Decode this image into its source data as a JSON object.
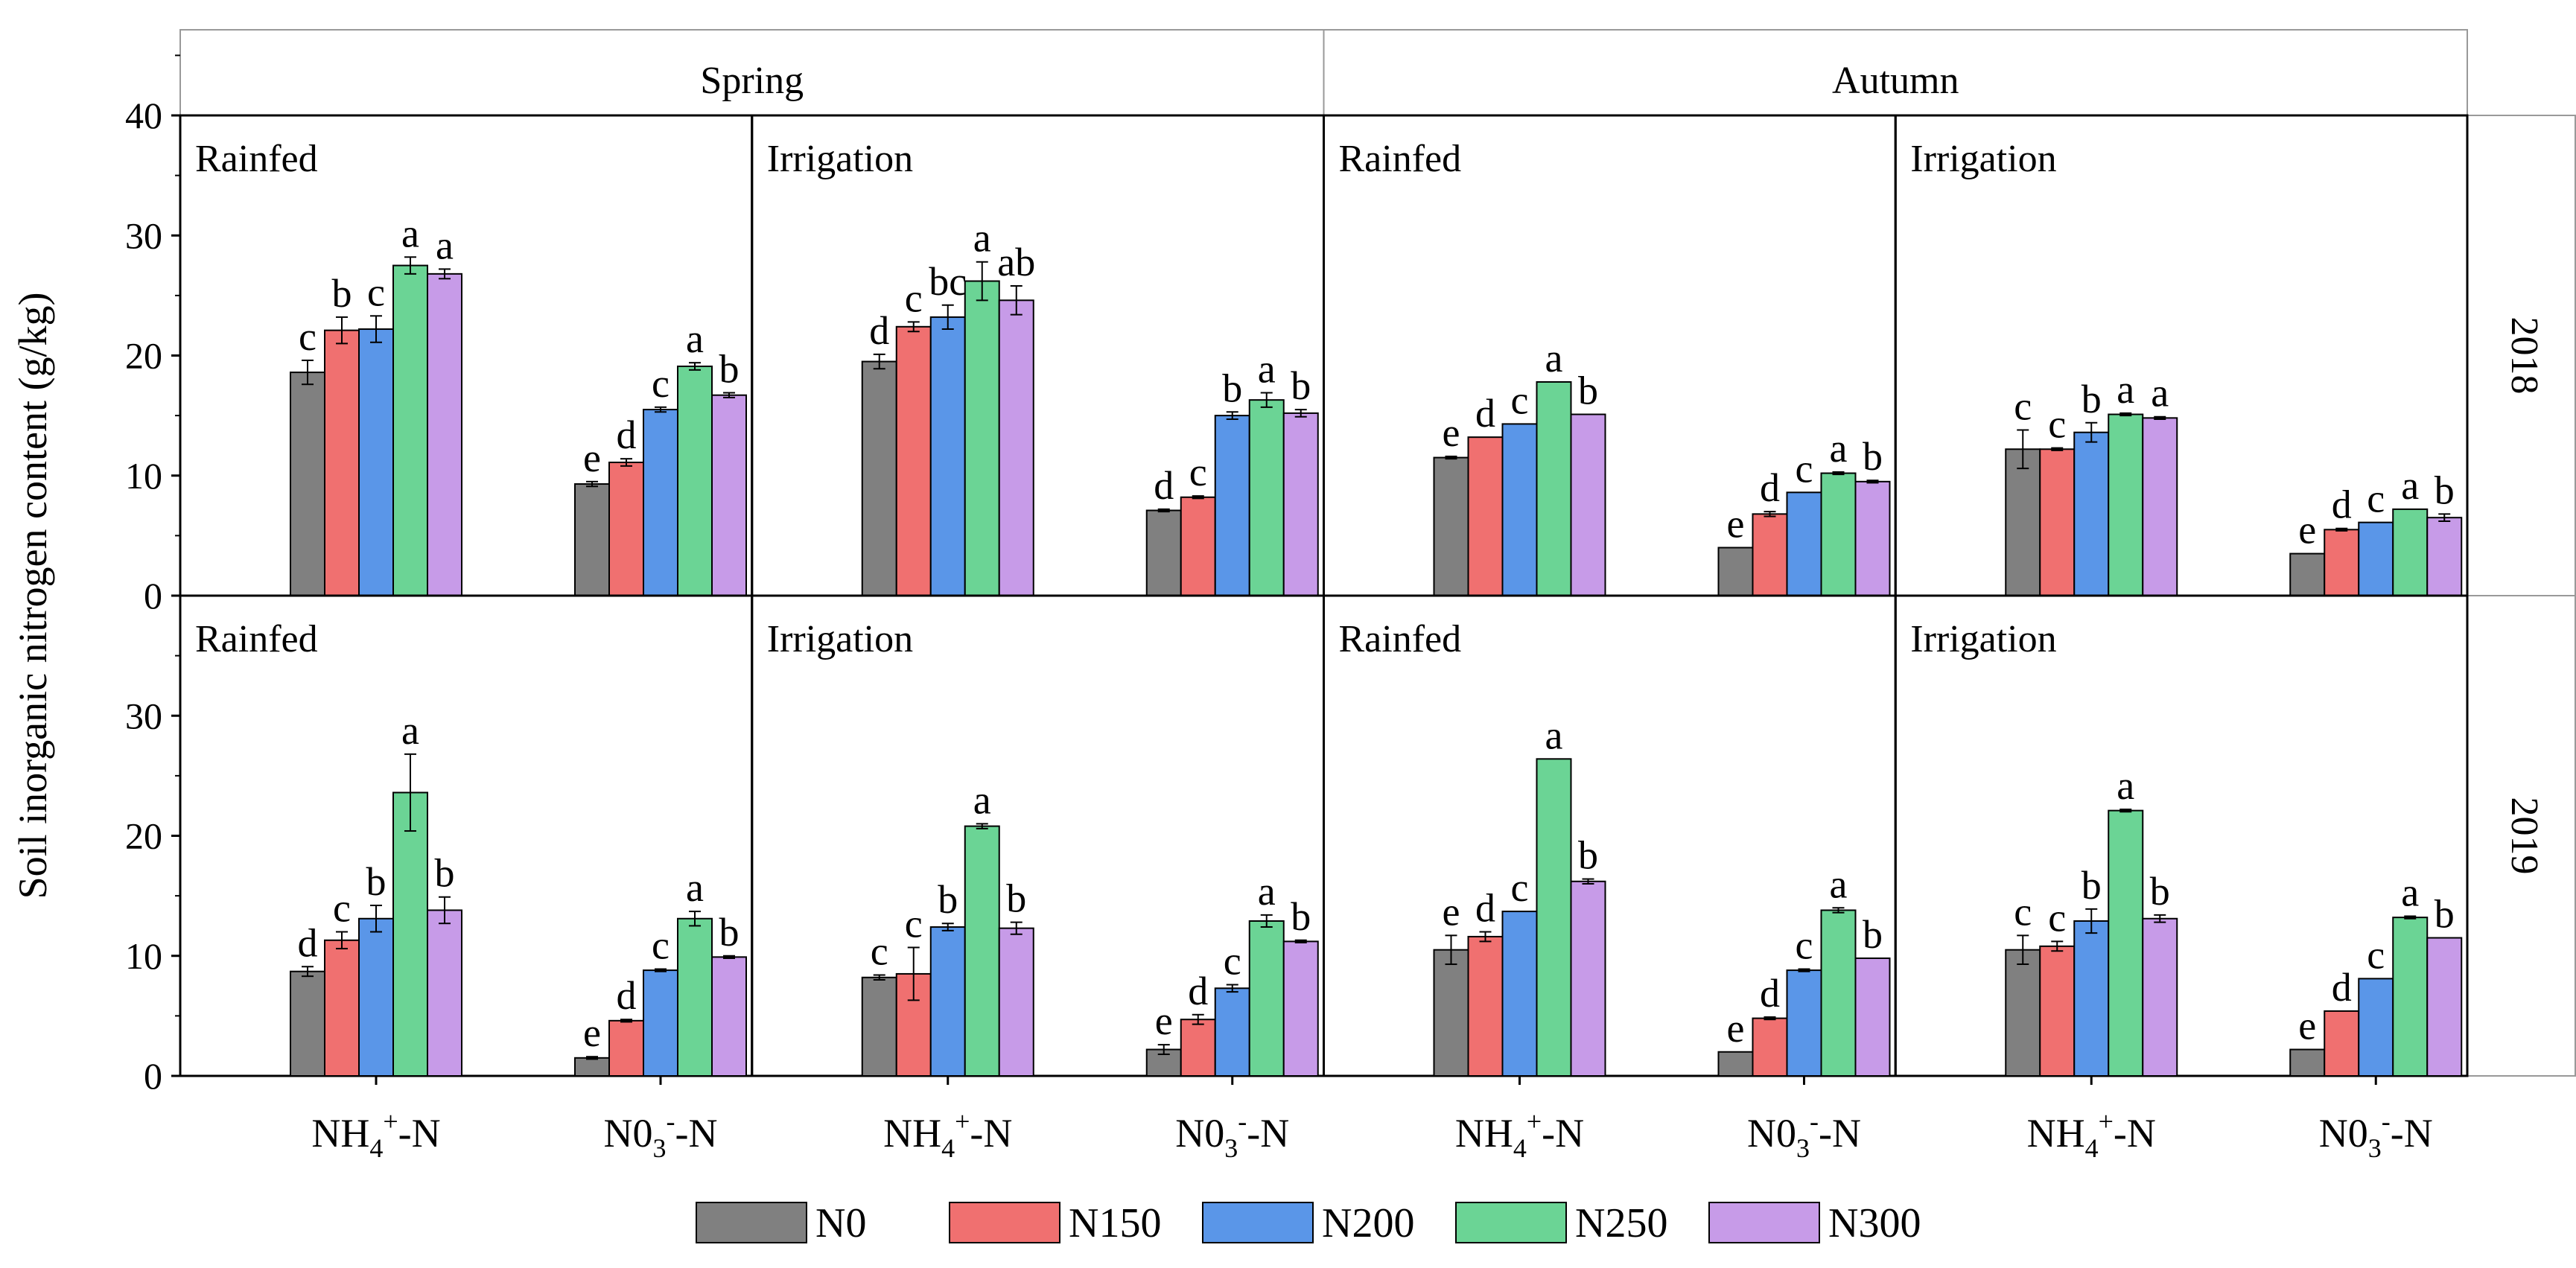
{
  "chart_data": {
    "type": "bar",
    "ylabel": "Soil inorganic nitrogen content (g/kg)",
    "ylim": [
      0,
      40
    ],
    "yticks": [
      0,
      10,
      20,
      30,
      40
    ],
    "seasons": [
      "Spring",
      "Autumn"
    ],
    "years": [
      "2018",
      "2019"
    ],
    "treatments": [
      "Rainfed",
      "Irrigation"
    ],
    "groups": [
      "NH4+-N",
      "N03--N"
    ],
    "legend": [
      "N0",
      "N150",
      "N200",
      "N250",
      "N300"
    ],
    "colors": [
      "#808080",
      "#f07070",
      "#5a96e8",
      "#6bd495",
      "#c79be8"
    ],
    "legend_position": "bottom",
    "panels": [
      {
        "year": "2018",
        "season": "Spring",
        "treatment": "Rainfed",
        "groups": [
          {
            "values": [
              18.6,
              22.1,
              22.2,
              27.5,
              26.8
            ],
            "errors": [
              1.0,
              1.1,
              1.1,
              0.7,
              0.4
            ],
            "letters": [
              "c",
              "b",
              "c",
              "a",
              "a"
            ]
          },
          {
            "values": [
              9.3,
              11.1,
              15.5,
              19.1,
              16.7
            ],
            "errors": [
              0.2,
              0.3,
              0.2,
              0.3,
              0.2
            ],
            "letters": [
              "e",
              "d",
              "c",
              "a",
              "b"
            ]
          }
        ]
      },
      {
        "year": "2018",
        "season": "Spring",
        "treatment": "Irrigation",
        "groups": [
          {
            "values": [
              19.5,
              22.4,
              23.2,
              26.2,
              24.6
            ],
            "errors": [
              0.6,
              0.4,
              1.0,
              1.6,
              1.2
            ],
            "letters": [
              "d",
              "c",
              "bc",
              "a",
              "ab"
            ]
          },
          {
            "values": [
              7.1,
              8.2,
              15.0,
              16.3,
              15.2
            ],
            "errors": [
              0.1,
              0.1,
              0.3,
              0.6,
              0.3
            ],
            "letters": [
              "d",
              "c",
              "b",
              "a",
              "b"
            ]
          }
        ]
      },
      {
        "year": "2018",
        "season": "Autumn",
        "treatment": "Rainfed",
        "groups": [
          {
            "values": [
              11.5,
              13.2,
              14.3,
              17.8,
              15.1
            ],
            "errors": [
              0.1,
              0,
              0,
              0,
              0
            ],
            "letters": [
              "e",
              "d",
              "c",
              "a",
              "b"
            ]
          },
          {
            "values": [
              4.0,
              6.8,
              8.6,
              10.2,
              9.5
            ],
            "errors": [
              0,
              0.2,
              0,
              0.1,
              0.1
            ],
            "letters": [
              "e",
              "d",
              "c",
              "a",
              "b"
            ]
          }
        ]
      },
      {
        "year": "2018",
        "season": "Autumn",
        "treatment": "Irrigation",
        "groups": [
          {
            "values": [
              12.2,
              12.2,
              13.6,
              15.1,
              14.8
            ],
            "errors": [
              1.6,
              0.1,
              0.8,
              0.1,
              0.1
            ],
            "letters": [
              "c",
              "c",
              "b",
              "a",
              "a"
            ]
          },
          {
            "values": [
              3.5,
              5.5,
              6.1,
              7.2,
              6.5
            ],
            "errors": [
              0,
              0.1,
              0,
              0,
              0.3
            ],
            "letters": [
              "e",
              "d",
              "c",
              "a",
              "b"
            ]
          }
        ]
      },
      {
        "year": "2019",
        "season": "Spring",
        "treatment": "Rainfed",
        "groups": [
          {
            "values": [
              8.7,
              11.3,
              13.1,
              23.6,
              13.8
            ],
            "errors": [
              0.4,
              0.7,
              1.1,
              3.2,
              1.1
            ],
            "letters": [
              "d",
              "c",
              "b",
              "a",
              "b"
            ]
          },
          {
            "values": [
              1.5,
              4.6,
              8.8,
              13.1,
              9.9
            ],
            "errors": [
              0.1,
              0.1,
              0.1,
              0.6,
              0.1
            ],
            "letters": [
              "e",
              "d",
              "c",
              "a",
              "b"
            ]
          }
        ]
      },
      {
        "year": "2019",
        "season": "Spring",
        "treatment": "Irrigation",
        "groups": [
          {
            "values": [
              8.2,
              8.5,
              12.4,
              20.8,
              12.3
            ],
            "errors": [
              0.2,
              2.2,
              0.3,
              0.2,
              0.5
            ],
            "letters": [
              "c",
              "c",
              "b",
              "a",
              "b"
            ]
          },
          {
            "values": [
              2.2,
              4.7,
              7.3,
              12.9,
              11.2
            ],
            "errors": [
              0.4,
              0.4,
              0.3,
              0.5,
              0.1
            ],
            "letters": [
              "e",
              "d",
              "c",
              "a",
              "b"
            ]
          }
        ]
      },
      {
        "year": "2019",
        "season": "Autumn",
        "treatment": "Rainfed",
        "groups": [
          {
            "values": [
              10.5,
              11.6,
              13.7,
              26.4,
              16.2
            ],
            "errors": [
              1.2,
              0.4,
              0,
              0,
              0.2
            ],
            "letters": [
              "e",
              "d",
              "c",
              "a",
              "b"
            ]
          },
          {
            "values": [
              2.0,
              4.8,
              8.8,
              13.8,
              9.8
            ],
            "errors": [
              0,
              0.1,
              0.1,
              0.2,
              0
            ],
            "letters": [
              "e",
              "d",
              "c",
              "a",
              "b"
            ]
          }
        ]
      },
      {
        "year": "2019",
        "season": "Autumn",
        "treatment": "Irrigation",
        "groups": [
          {
            "values": [
              10.5,
              10.8,
              12.9,
              22.1,
              13.1
            ],
            "errors": [
              1.2,
              0.4,
              1.0,
              0.1,
              0.3
            ],
            "letters": [
              "c",
              "c",
              "b",
              "a",
              "b"
            ]
          },
          {
            "values": [
              2.2,
              5.4,
              8.1,
              13.2,
              11.5
            ],
            "errors": [
              0,
              0,
              0,
              0.1,
              0
            ],
            "letters": [
              "e",
              "d",
              "c",
              "a",
              "b"
            ]
          }
        ]
      }
    ]
  }
}
